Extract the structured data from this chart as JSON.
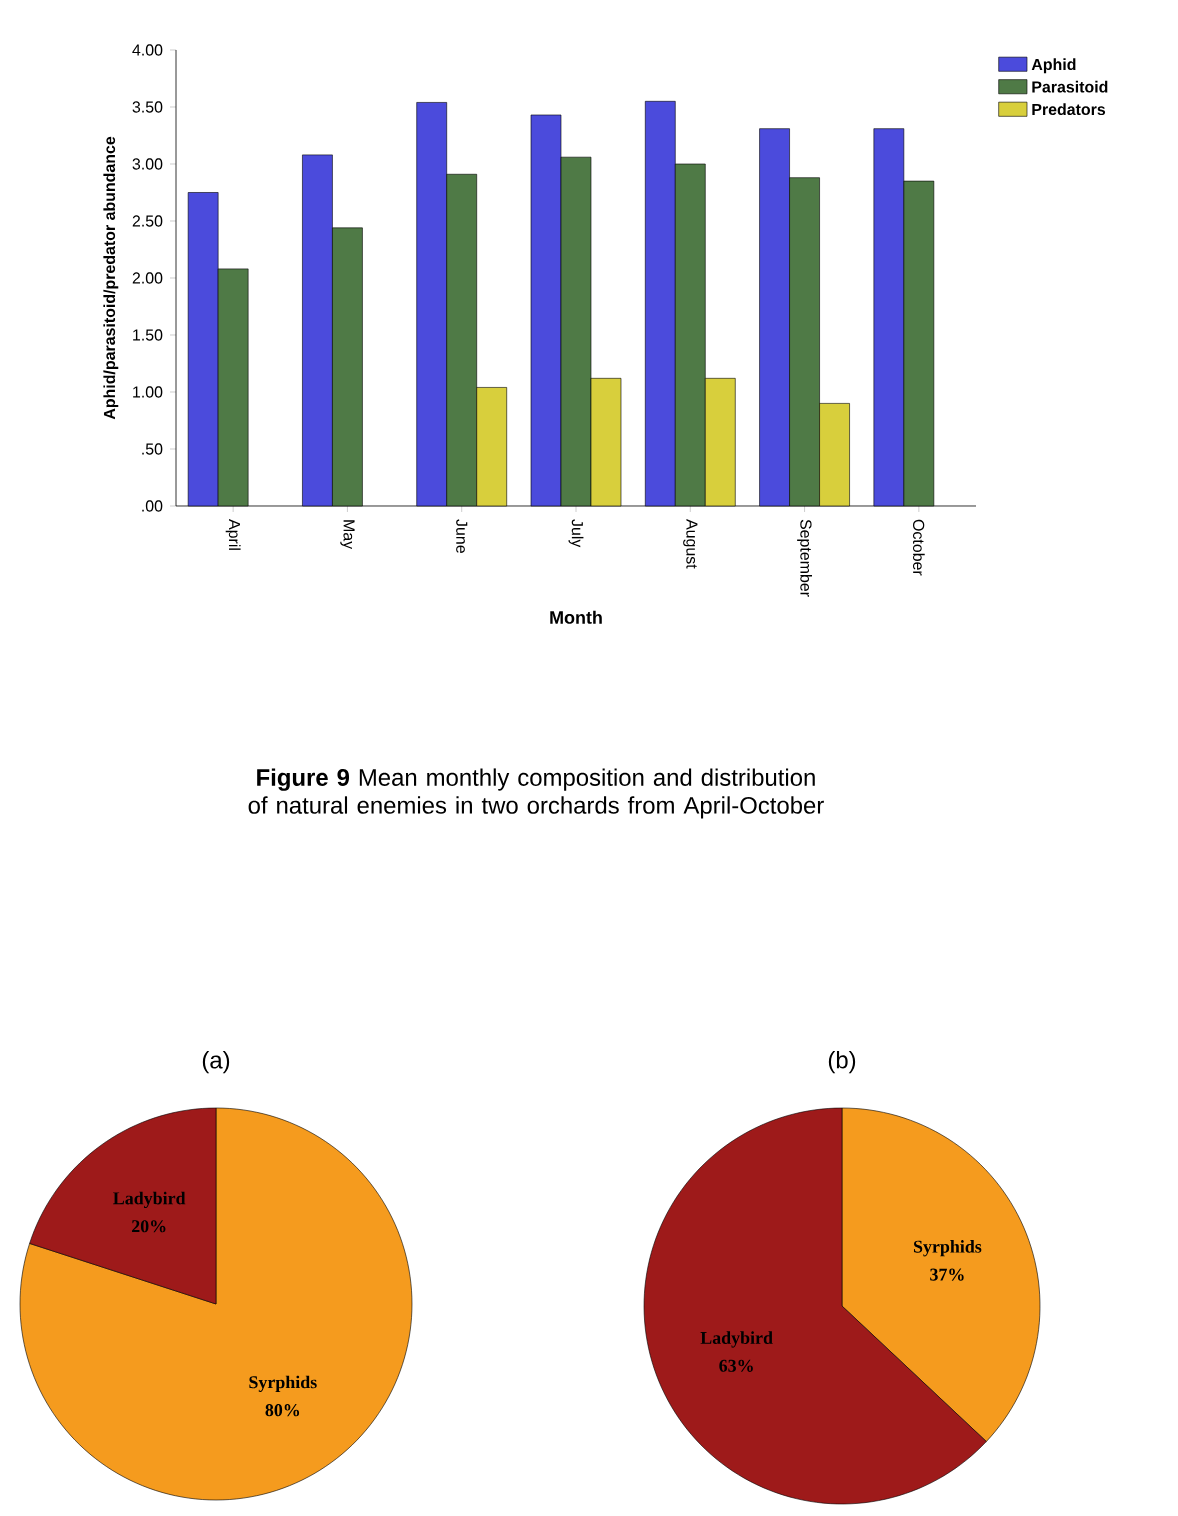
{
  "chart_data": [
    {
      "type": "bar",
      "xlabel": "Month",
      "ylabel": "Aphid/parasitoid/predator abundance",
      "categories": [
        "April",
        "May",
        "June",
        "July",
        "August",
        "September",
        "October"
      ],
      "series": [
        {
          "name": "Aphid",
          "color": "#4b4bdc",
          "values": [
            2.75,
            3.08,
            3.54,
            3.43,
            3.55,
            3.31,
            3.31
          ]
        },
        {
          "name": "Parasitoid",
          "color": "#4f7a46",
          "values": [
            2.08,
            2.44,
            2.91,
            3.06,
            3.0,
            2.88,
            2.85
          ]
        },
        {
          "name": "Predators",
          "color": "#d8cf3c",
          "values": [
            null,
            null,
            1.04,
            1.12,
            1.12,
            0.9,
            null
          ]
        }
      ],
      "ylim": [
        0,
        4
      ],
      "yticks": [
        {
          "value": 0,
          "label": ".00"
        },
        {
          "value": 0.5,
          "label": ".50"
        },
        {
          "value": 1,
          "label": "1.00"
        },
        {
          "value": 1.5,
          "label": "1.50"
        },
        {
          "value": 2,
          "label": "2.00"
        },
        {
          "value": 2.5,
          "label": "2.50"
        },
        {
          "value": 3,
          "label": "3.00"
        },
        {
          "value": 3.5,
          "label": "3.50"
        },
        {
          "value": 4,
          "label": "4.00"
        }
      ],
      "legend": "top right",
      "annotations": [
        "**Figure 9** Mean monthly composition and distribution of natural enemies in two orchards from April-October"
      ]
    },
    {
      "type": "pie",
      "title": "(a)",
      "categories": [
        "Syrphids",
        "Ladybird"
      ],
      "values": [
        80,
        20
      ],
      "colors": [
        "#f59b1e",
        "#9e1a1a"
      ],
      "value_labels": [
        "80%",
        "20%"
      ]
    },
    {
      "type": "pie",
      "title": "(b)",
      "categories": [
        "Syrphids",
        "Ladybird"
      ],
      "values": [
        37,
        63
      ],
      "colors": [
        "#f59b1e",
        "#9e1a1a"
      ],
      "value_labels": [
        "37%",
        "63%"
      ]
    }
  ]
}
